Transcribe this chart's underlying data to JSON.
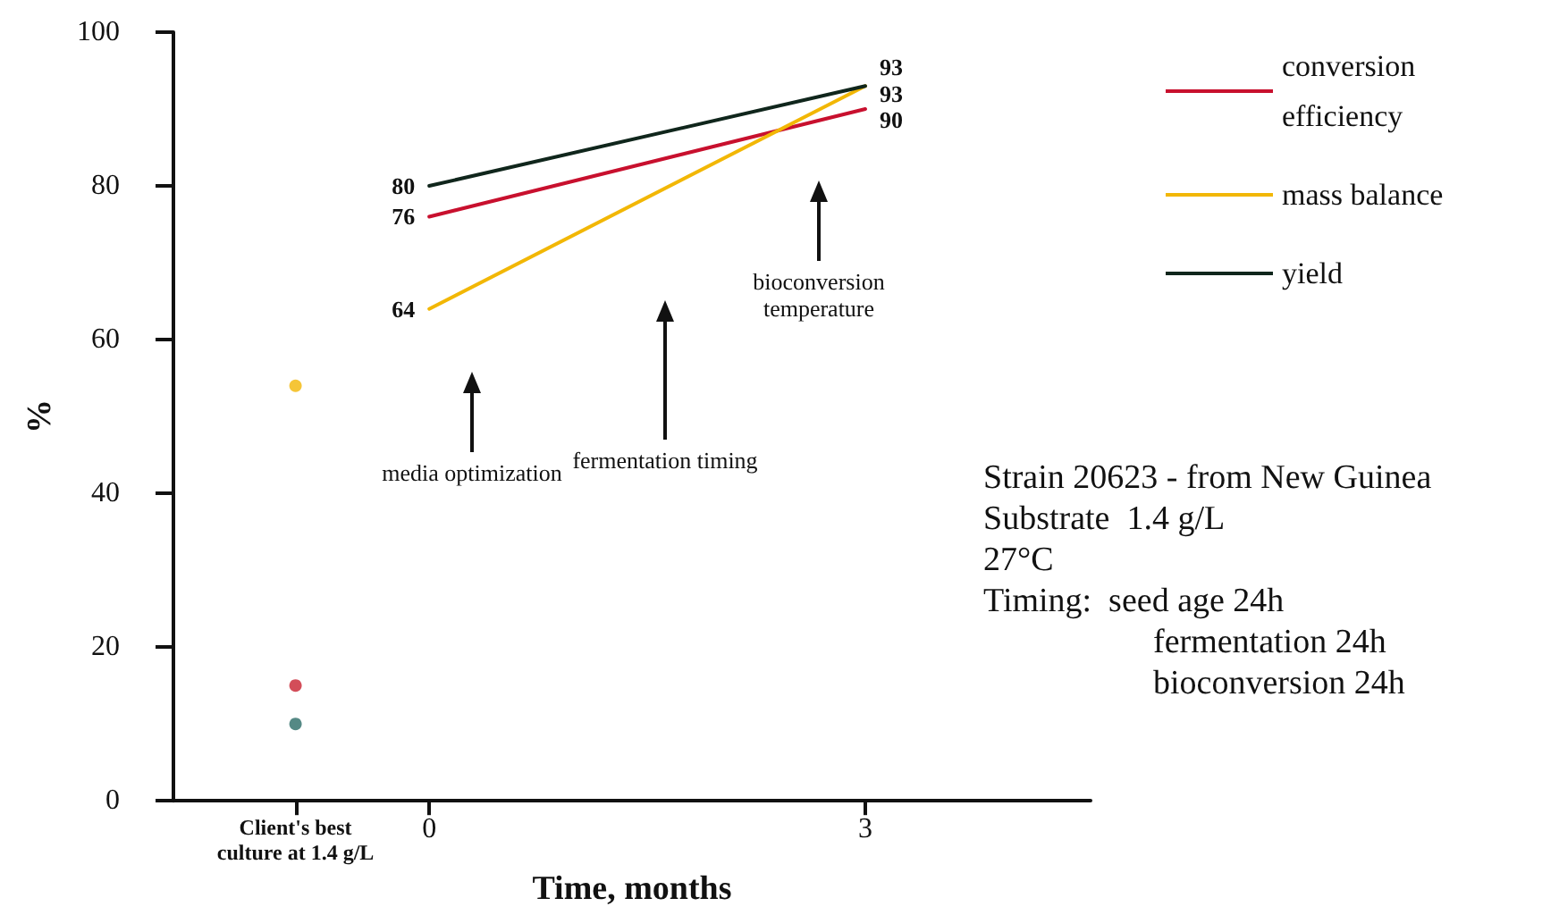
{
  "chart_data": {
    "type": "line",
    "xlabel": "Time, months",
    "ylabel": "%",
    "xlim": [
      -1.76,
      4.55
    ],
    "xticks": [
      {
        "value": -0.92,
        "label": "Client's best culture at 1.4 g/L"
      },
      0,
      3
    ],
    "ylim": [
      0,
      100
    ],
    "yticks": [
      0,
      20,
      40,
      60,
      80,
      100
    ],
    "series": [
      {
        "name": "conversion efficiency",
        "color": "#c8102e",
        "x": [
          0,
          3
        ],
        "values": [
          76,
          90
        ],
        "value_labels": [
          "76",
          "90"
        ],
        "marker": "none"
      },
      {
        "name": "mass balance",
        "color": "#f2b705",
        "x": [
          0,
          3
        ],
        "values": [
          64,
          93
        ],
        "value_labels": [
          "64",
          "93"
        ],
        "marker": "none"
      },
      {
        "name": "yield",
        "color": "#10261c",
        "x": [
          0,
          3
        ],
        "values": [
          80,
          93
        ],
        "value_labels": [
          "80",
          "93"
        ],
        "marker": "none"
      },
      {
        "type": "scatter",
        "x": [
          -0.92,
          -0.92,
          -0.92
        ],
        "values": [
          54,
          15,
          10
        ],
        "colors": [
          "#f2b705",
          "#c8202f",
          "#2a6b66"
        ],
        "marker": "circle"
      }
    ],
    "legend": "top right",
    "grid": false,
    "annotations": [
      "media optimization",
      "fermentation timing",
      "bioconversion temperature",
      "Strain 20623 - from New Guinea",
      "Substrate  1.4 g/L",
      "27°C",
      "Timing:  seed age 24h",
      "fermentation 24h",
      "bioconversion 24h"
    ]
  }
}
